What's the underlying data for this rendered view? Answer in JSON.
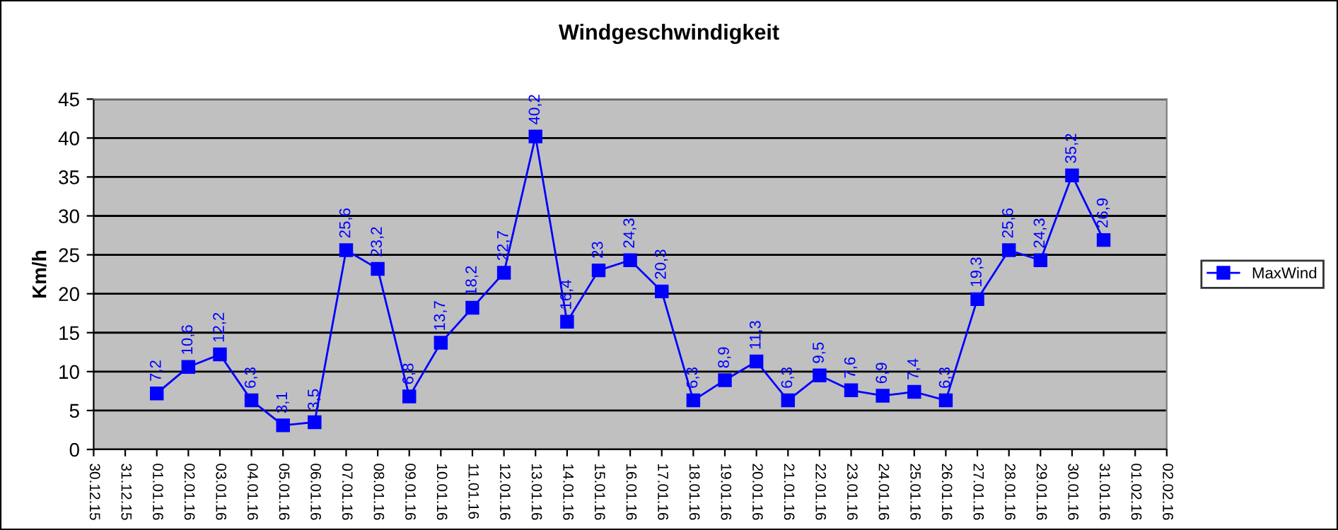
{
  "chart_data": {
    "type": "line",
    "title": "Windgeschwindigkeit",
    "ylabel": "Km/h",
    "categories": [
      "30.12.15",
      "31.12.15",
      "01.01.16",
      "02.01.16",
      "03.01.16",
      "04.01.16",
      "05.01.16",
      "06.01.16",
      "07.01.16",
      "08.01.16",
      "09.01.16",
      "10.01.16",
      "11.01.16",
      "12.01.16",
      "13.01.16",
      "14.01.16",
      "15.01.16",
      "16.01.16",
      "17.01.16",
      "18.01.16",
      "19.01.16",
      "20.01.16",
      "21.01.16",
      "22.01.16",
      "23.01.16",
      "24.01.16",
      "25.01.16",
      "26.01.16",
      "27.01.16",
      "28.01.16",
      "29.01.16",
      "30.01.16",
      "31.01.16",
      "01.02.16",
      "02.02.16"
    ],
    "series": [
      {
        "name": "MaxWind",
        "color": "#0000ff",
        "values": [
          null,
          null,
          7.2,
          10.6,
          12.2,
          6.3,
          3.1,
          3.5,
          25.6,
          23.2,
          6.8,
          13.7,
          18.2,
          22.7,
          40.2,
          16.4,
          23,
          24.3,
          20.3,
          6.3,
          8.9,
          11.3,
          6.3,
          9.5,
          7.6,
          6.9,
          7.4,
          6.3,
          19.3,
          25.6,
          24.3,
          35.2,
          26.9,
          null,
          null
        ],
        "value_labels": [
          null,
          null,
          "7,2",
          "10,6",
          "12,2",
          "6,3",
          "3,1",
          "3,5",
          "25,6",
          "23,2",
          "6,8",
          "13,7",
          "18,2",
          "22,7",
          "40,2",
          "16,4",
          "23",
          "24,3",
          "20,3",
          "6,3",
          "8,9",
          "11,3",
          "6,3",
          "9,5",
          "7,6",
          "6,9",
          "7,4",
          "6,3",
          "19,3",
          "25,6",
          "24,3",
          "35,2",
          "26,9",
          null,
          null
        ]
      }
    ],
    "ylim": [
      0,
      45
    ],
    "yticks": [
      0,
      5,
      10,
      15,
      20,
      25,
      30,
      35,
      40,
      45
    ],
    "grid": "y",
    "legend": "right",
    "marker": "square",
    "line_style": "solid"
  }
}
